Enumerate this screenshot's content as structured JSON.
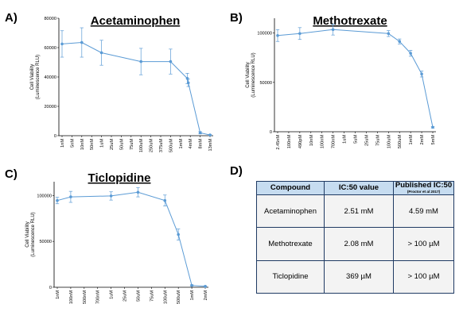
{
  "chart_data": [
    {
      "type": "line",
      "panel": "A)",
      "title": "Acetaminophen",
      "ylabel_line1": "Cell Viability",
      "ylabel_line2": "(Luminescence RLU)",
      "ylim": [
        0,
        80000
      ],
      "yticks": [
        0,
        20000,
        40000,
        60000,
        80000
      ],
      "categories": [
        "1nM",
        "5nM",
        "10nM",
        "50nM",
        "1uM",
        "25uM",
        "50uM",
        "75uM",
        "100uM",
        "250uM",
        "375uM",
        "500uM",
        "1mM",
        "4mM",
        "8mM",
        "13mM"
      ],
      "points": [
        {
          "i": 0,
          "y": 62500,
          "err": 9000
        },
        {
          "i": 2,
          "y": 63500,
          "err": 10000
        },
        {
          "i": 4,
          "y": 56500,
          "err": 8500
        },
        {
          "i": 8,
          "y": 50500,
          "err": 9000
        },
        {
          "i": 11,
          "y": 50500,
          "err": 8500
        },
        {
          "i": 12.7,
          "y": 39000,
          "err": 3500
        },
        {
          "i": 12.8,
          "y": 36000,
          "err": 2500
        },
        {
          "i": 14,
          "y": 2000,
          "err": 800
        },
        {
          "i": 15,
          "y": 500,
          "err": 300
        }
      ]
    },
    {
      "type": "line",
      "panel": "B)",
      "title": "Methotrexate",
      "ylabel_line1": "Cell Viability",
      "ylabel_line2": "(Luminescence RLU)",
      "ylim": [
        0,
        115000
      ],
      "yticks": [
        0,
        50000,
        100000
      ],
      "categories": [
        "2.45nM",
        "100nM",
        "490pM",
        "10nM",
        "100nM",
        "700nM",
        "1uM",
        "5uM",
        "25uM",
        "75uM",
        "100uM",
        "500uM",
        "1mM",
        "2mM",
        "5mM"
      ],
      "points": [
        {
          "i": 0,
          "y": 97500,
          "err": 6000
        },
        {
          "i": 2,
          "y": 99500,
          "err": 6000
        },
        {
          "i": 5,
          "y": 103500,
          "err": 5500
        },
        {
          "i": 10,
          "y": 99500,
          "err": 3000
        },
        {
          "i": 11,
          "y": 91500,
          "err": 2500
        },
        {
          "i": 12,
          "y": 79500,
          "err": 3000
        },
        {
          "i": 13,
          "y": 58500,
          "err": 3000
        },
        {
          "i": 14,
          "y": 4500,
          "err": 800
        }
      ]
    },
    {
      "type": "line",
      "panel": "C)",
      "title": "Ticlopidine",
      "ylabel_line1": "Cell Viability",
      "ylabel_line2": "(Luminescence RLU)",
      "ylim": [
        0,
        115000
      ],
      "yticks": [
        0,
        50000,
        100000
      ],
      "categories": [
        "1nM",
        "100nM",
        "500nM",
        "700nM",
        "1uM",
        "25uM",
        "50uM",
        "75uM",
        "100uM",
        "500uM",
        "1mM",
        "2mM"
      ],
      "points": [
        {
          "i": 0,
          "y": 94500,
          "err": 3500
        },
        {
          "i": 1,
          "y": 98500,
          "err": 6000
        },
        {
          "i": 4,
          "y": 99500,
          "err": 4500
        },
        {
          "i": 6,
          "y": 103500,
          "err": 5000
        },
        {
          "i": 8,
          "y": 94500,
          "err": 6000
        },
        {
          "i": 9,
          "y": 57500,
          "err": 6000
        },
        {
          "i": 10,
          "y": 2000,
          "err": 700
        },
        {
          "i": 11,
          "y": 1000,
          "err": 500
        }
      ]
    }
  ],
  "series_color": "#5b9bd5",
  "table": {
    "panel": "D)",
    "headers": [
      "Compound",
      "IC:50 value",
      "Published IC:50"
    ],
    "header_note": "(Proctor et al 2017)",
    "rows": [
      [
        "Acetaminophen",
        "2.51 mM",
        "4.59 mM"
      ],
      [
        "Methotrexate",
        "2.08 mM",
        "> 100 µM"
      ],
      [
        "Ticlopidine",
        "369 µM",
        "> 100 µM"
      ]
    ]
  }
}
